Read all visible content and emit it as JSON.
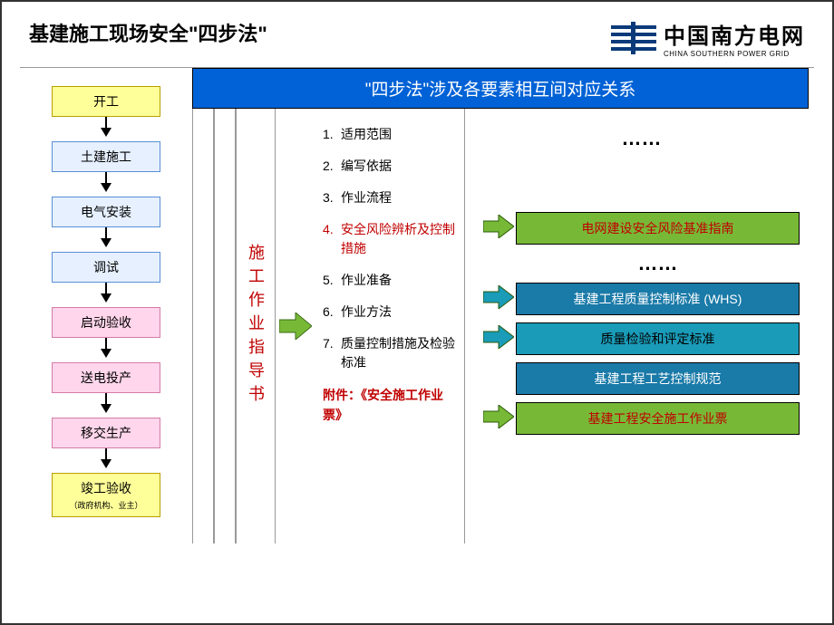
{
  "header": {
    "title": "基建施工现场安全\"四步法\"",
    "logo_cn": "中国南方电网",
    "logo_en": "CHINA SOUTHERN POWER GRID",
    "logo_color": "#0a3a7a"
  },
  "banner": "\"四步法\"涉及各要素相互间对应关系",
  "banner_bg": "#0062d6",
  "flow": [
    {
      "label": "开工",
      "bg": "#ffff99",
      "border": "#b8a000"
    },
    {
      "label": "土建施工",
      "bg": "#e6f0ff",
      "border": "#5a8fd6"
    },
    {
      "label": "电气安装",
      "bg": "#e6f0ff",
      "border": "#5a8fd6"
    },
    {
      "label": "调试",
      "bg": "#e6f0ff",
      "border": "#5a8fd6"
    },
    {
      "label": "启动验收",
      "bg": "#ffd6eb",
      "border": "#d67aa8"
    },
    {
      "label": "送电投产",
      "bg": "#ffd6eb",
      "border": "#d67aa8"
    },
    {
      "label": "移交生产",
      "bg": "#ffd6eb",
      "border": "#d67aa8"
    },
    {
      "label": "竣工验收",
      "sub": "（政府机构、业主）",
      "bg": "#ffff99",
      "border": "#b8a000"
    }
  ],
  "vlabel": "施工作业指导书",
  "list": [
    {
      "t": "适用范围"
    },
    {
      "t": "编写依据"
    },
    {
      "t": "作业流程"
    },
    {
      "t": "安全风险辨析及控制措施",
      "red": true
    },
    {
      "t": "作业准备"
    },
    {
      "t": "作业方法"
    },
    {
      "t": "质量控制措施及检验标准"
    }
  ],
  "attach": "附件：《安全施工作业票》",
  "dots": "……",
  "refs": [
    {
      "label": "电网建设安全风险基准指南",
      "bg": "#77b936",
      "fg": "#c00000",
      "arrow": "#77b936",
      "dots_after": true
    },
    {
      "label": "基建工程质量控制标准 (WHS)",
      "bg": "#1a7aa8",
      "fg": "#ffffff",
      "arrow": "#1a9bb8"
    },
    {
      "label": "质量检验和评定标准",
      "bg": "#1a9bb8",
      "fg": "#000000",
      "arrow": "#1a9bb8"
    },
    {
      "label": "基建工程工艺控制规范",
      "bg": "#1a7aa8",
      "fg": "#ffffff",
      "arrow": null
    },
    {
      "label": "基建工程安全施工作业票",
      "bg": "#77b936",
      "fg": "#c00000",
      "arrow": "#77b936"
    }
  ],
  "mid_arrow_color": "#77b936"
}
